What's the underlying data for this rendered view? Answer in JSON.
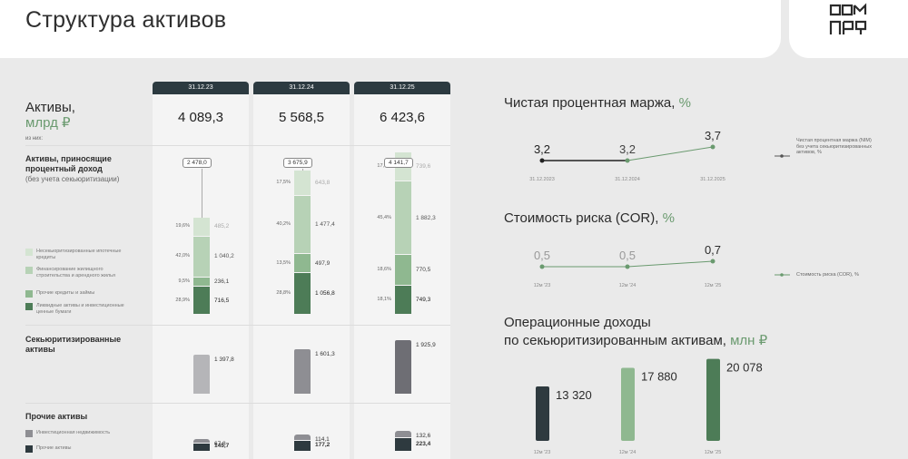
{
  "page": {
    "title": "Структура активов"
  },
  "assets": {
    "title": "Активы,",
    "unit": "млрд ₽",
    "note": "из них:",
    "periods": [
      "31.12.23",
      "31.12.24",
      "31.12.25"
    ],
    "totals": [
      "4 089,3",
      "5 568,5",
      "6 423,6"
    ],
    "interest": {
      "label_l1": "Активы, приносящие",
      "label_l2": "процентный доход",
      "label_l3": "(без учета секьюритизации)",
      "pills": [
        "2 478,0",
        "3 675,9",
        "4 141,7"
      ],
      "legend": [
        "Несекьюритизированные ипотечные кредиты",
        "Финансирование жилищного строительства и арендного жилья",
        "Прочие кредиты и займы",
        "Ликвидные активы и инвестиционные ценные бумаги"
      ],
      "columns": [
        {
          "values": [
            716.5,
            236.1,
            1040.2,
            485.2
          ],
          "labels": [
            "716,5",
            "236,1",
            "1 040,2",
            "485,2"
          ],
          "pcts": [
            "28,9%",
            "9,5%",
            "42,0%",
            "19,6%"
          ]
        },
        {
          "values": [
            1056.8,
            497.9,
            1477.4,
            643.8
          ],
          "labels": [
            "1 056,8",
            "497,9",
            "1 477,4",
            "643,8"
          ],
          "pcts": [
            "28,8%",
            "13,5%",
            "40,2%",
            "17,5%"
          ]
        },
        {
          "values": [
            749.3,
            770.5,
            1882.3,
            739.6
          ],
          "labels": [
            "749,3",
            "770,5",
            "1 882,3",
            "739,6"
          ],
          "pcts": [
            "18,1%",
            "18,6%",
            "45,4%",
            "17,9%"
          ]
        }
      ]
    },
    "securitized": {
      "label_l1": "Секьюритизированные",
      "label_l2": "активы",
      "values": [
        1397.8,
        1601.3,
        1925.9
      ],
      "labels": [
        "1 397,8",
        "1 601,3",
        "1 925,9"
      ]
    },
    "other": {
      "label": "Прочие активы",
      "legend": [
        "Инвестиционная недвижимость",
        "Прочие активы"
      ],
      "columns": [
        {
          "values": [
            67.8,
            145.7
          ],
          "labels": [
            "67,8",
            "145,7"
          ]
        },
        {
          "values": [
            114.1,
            177.2
          ],
          "labels": [
            "114,1",
            "177,2"
          ]
        },
        {
          "values": [
            132.6,
            223.4
          ],
          "labels": [
            "132,6",
            "223,4"
          ]
        }
      ]
    }
  },
  "colors": {
    "dark": "#2e3a3f",
    "seg_dark": "#4d7c57",
    "seg_mid": "#8fb890",
    "seg_light": "#b7d2b6",
    "seg_pale": "#d4e4d2",
    "grey_light": "#b5b5b8",
    "grey_mid": "#8e8e93",
    "grey_dark": "#6e6e74",
    "accent": "#6a9a6f"
  },
  "nim": {
    "title": "Чистая процентная маржа,",
    "unit": "%",
    "legend": "Чистая процентная маржа (NIM) без учета секьюритизированных активов, %"
  },
  "cor": {
    "title": "Стоимость риска (COR),",
    "unit": "%",
    "legend": "Стоимость риска (COR), %"
  },
  "opinc": {
    "title_l1": "Операционные доходы",
    "title_l2": "по секьюритизированным активам,",
    "unit": "млн ₽"
  },
  "chart_data": [
    {
      "type": "line",
      "title": "Чистая процентная маржа, %",
      "x": [
        "31.12.2023",
        "31.12.2024",
        "31.12.2025"
      ],
      "values": [
        3.2,
        3.2,
        3.7
      ],
      "labels": [
        "3,2",
        "3,2",
        "3,7"
      ]
    },
    {
      "type": "line",
      "title": "Стоимость риска (COR), %",
      "x": [
        "12м '23",
        "12м '24",
        "12м '25"
      ],
      "values": [
        0.5,
        0.5,
        0.7
      ],
      "labels": [
        "0,5",
        "0,5",
        "0,7"
      ]
    },
    {
      "type": "bar",
      "title": "Операционные доходы по секьюритизированным активам, млн ₽",
      "categories": [
        "12м '23",
        "12м '24",
        "12м '25"
      ],
      "values": [
        13320,
        17880,
        20078
      ],
      "labels": [
        "13 320",
        "17 880",
        "20 078"
      ]
    }
  ]
}
